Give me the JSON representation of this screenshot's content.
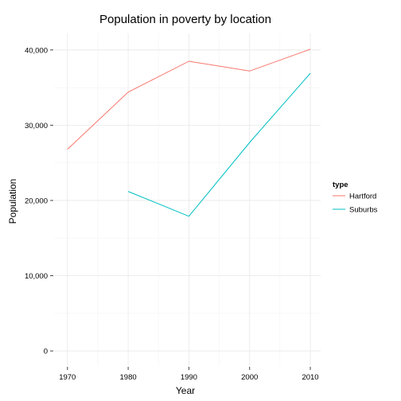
{
  "chart_data": {
    "type": "line",
    "title": "Population in poverty by location",
    "xlabel": "Year",
    "ylabel": "Population",
    "x_ticks": [
      1970,
      1980,
      1990,
      2000,
      2010
    ],
    "y_ticks": [
      0,
      10000,
      20000,
      30000,
      40000
    ],
    "y_tick_labels": [
      "0",
      "10,000",
      "20,000",
      "30,000",
      "40,000"
    ],
    "xlim": [
      1967.8,
      2011.7
    ],
    "ylim": [
      -2000,
      42200
    ],
    "grid": true,
    "legend": {
      "title": "type",
      "placement": "right"
    },
    "series": [
      {
        "name": "Hartford",
        "color": "#F8766D",
        "x": [
          1970,
          1980,
          1990,
          2000,
          2010
        ],
        "y": [
          26800,
          34400,
          38500,
          37200,
          40100
        ]
      },
      {
        "name": "Suburbs",
        "color": "#00BFC4",
        "x": [
          1980,
          1990,
          2000,
          2010
        ],
        "y": [
          21200,
          17900,
          27700,
          36900
        ]
      }
    ]
  }
}
